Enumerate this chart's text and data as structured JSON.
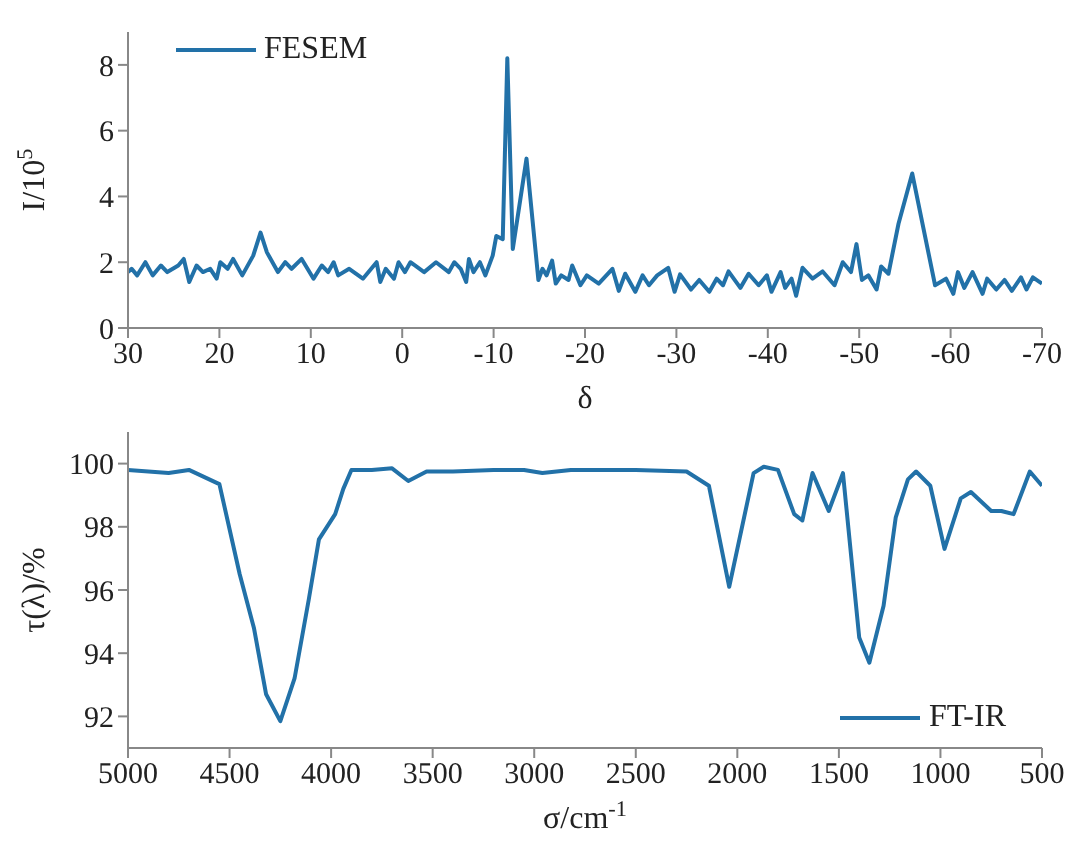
{
  "chart_data": [
    {
      "type": "line",
      "xlabel": "δ",
      "ylabel": "I/10$^{5}$",
      "xlim": [
        30,
        -70
      ],
      "xticks": [
        30,
        20,
        10,
        0,
        -10,
        -20,
        -30,
        -40,
        -50,
        -60,
        -70
      ],
      "ylim": [
        0,
        9
      ],
      "yticks": [
        0,
        2,
        4,
        6,
        8
      ],
      "legend": "top left",
      "grid": false,
      "marker": "none",
      "series": [
        {
          "name": "FESEM",
          "color": "#2271a8",
          "x": [
            30.0,
            29.6,
            29.0,
            28.1,
            27.3,
            26.4,
            25.7,
            24.5,
            23.9,
            23.3,
            22.5,
            21.8,
            21.0,
            20.3,
            19.9,
            19.1,
            18.5,
            17.5,
            16.3,
            15.5,
            14.8,
            13.6,
            12.8,
            12.1,
            11.0,
            9.7,
            8.8,
            8.1,
            7.5,
            7.0,
            5.8,
            4.3,
            2.8,
            2.4,
            1.8,
            0.9,
            0.4,
            -0.3,
            -0.9,
            -2.4,
            -3.7,
            -5.1,
            -5.7,
            -6.4,
            -7.0,
            -7.3,
            -7.8,
            -8.5,
            -9.1,
            -9.9,
            -10.3,
            -11.0,
            -11.5,
            -12.1,
            -13.6,
            -14.9,
            -15.35,
            -15.8,
            -16.4,
            -16.8,
            -17.4,
            -18.2,
            -18.6,
            -19.5,
            -20.2,
            -21.5,
            -23.0,
            -23.7,
            -24.4,
            -25.5,
            -26.3,
            -27.0,
            -27.9,
            -29.1,
            -29.8,
            -30.4,
            -31.6,
            -32.5,
            -33.6,
            -34.4,
            -35.1,
            -35.7,
            -37.0,
            -37.9,
            -39.0,
            -39.9,
            -40.4,
            -41.4,
            -41.9,
            -42.6,
            -43.1,
            -43.8,
            -44.9,
            -46.0,
            -47.3,
            -48.2,
            -49.1,
            -49.7,
            -50.3,
            -51.0,
            -51.9,
            -52.4,
            -53.2,
            -54.3,
            -55.8,
            -58.3,
            -59.5,
            -60.3,
            -60.8,
            -61.5,
            -62.4,
            -63.5,
            -64.0,
            -65.0,
            -65.9,
            -66.7,
            -67.7,
            -68.3,
            -69.0,
            -70.0
          ],
          "values": [
            1.7,
            1.8,
            1.6,
            2.0,
            1.6,
            1.9,
            1.7,
            1.9,
            2.1,
            1.4,
            1.9,
            1.7,
            1.8,
            1.5,
            2.0,
            1.8,
            2.1,
            1.6,
            2.2,
            2.9,
            2.3,
            1.7,
            2.0,
            1.8,
            2.1,
            1.5,
            1.9,
            1.7,
            2.0,
            1.6,
            1.8,
            1.5,
            2.0,
            1.4,
            1.8,
            1.5,
            2.0,
            1.7,
            2.0,
            1.7,
            2.0,
            1.7,
            2.0,
            1.8,
            1.4,
            2.1,
            1.7,
            2.0,
            1.6,
            2.2,
            2.8,
            2.7,
            8.2,
            2.4,
            5.15,
            1.46,
            1.8,
            1.6,
            2.05,
            1.35,
            1.6,
            1.46,
            1.9,
            1.3,
            1.6,
            1.35,
            1.8,
            1.13,
            1.65,
            1.1,
            1.6,
            1.3,
            1.6,
            1.83,
            1.1,
            1.63,
            1.17,
            1.46,
            1.1,
            1.5,
            1.3,
            1.72,
            1.22,
            1.65,
            1.3,
            1.6,
            1.1,
            1.7,
            1.22,
            1.5,
            0.98,
            1.83,
            1.5,
            1.72,
            1.3,
            2.0,
            1.7,
            2.55,
            1.46,
            1.6,
            1.17,
            1.87,
            1.65,
            3.17,
            4.7,
            1.3,
            1.5,
            1.04,
            1.7,
            1.22,
            1.7,
            1.04,
            1.5,
            1.17,
            1.46,
            1.13,
            1.54,
            1.17,
            1.54,
            1.35
          ]
        }
      ]
    },
    {
      "type": "line",
      "xlabel": "σ/cm$^{-1}$",
      "ylabel": "τ(λ)/%",
      "xlim": [
        5000,
        500
      ],
      "xticks": [
        5000,
        4500,
        4000,
        3500,
        3000,
        2500,
        2000,
        1500,
        1000,
        500
      ],
      "ylim": [
        91,
        101
      ],
      "yticks": [
        92,
        94,
        96,
        98,
        100
      ],
      "legend": "bottom right",
      "grid": false,
      "marker": "none",
      "series": [
        {
          "name": "FT-IR",
          "color": "#2271a8",
          "x": [
            5000,
            4800,
            4700,
            4550,
            4450,
            4380,
            4320,
            4250,
            4180,
            4110,
            4060,
            3980,
            3940,
            3900,
            3800,
            3700,
            3620,
            3530,
            3400,
            3200,
            3050,
            2960,
            2820,
            2500,
            2250,
            2140,
            2040,
            1920,
            1870,
            1800,
            1720,
            1680,
            1630,
            1550,
            1480,
            1400,
            1350,
            1280,
            1220,
            1160,
            1120,
            1050,
            980,
            900,
            850,
            750,
            700,
            640,
            560,
            500
          ],
          "values": [
            99.8,
            99.7,
            99.8,
            99.35,
            96.5,
            94.8,
            92.7,
            91.85,
            93.2,
            95.7,
            97.6,
            98.4,
            99.2,
            99.8,
            99.8,
            99.85,
            99.45,
            99.75,
            99.75,
            99.8,
            99.8,
            99.7,
            99.8,
            99.8,
            99.75,
            99.3,
            96.1,
            99.7,
            99.9,
            99.8,
            98.4,
            98.2,
            99.7,
            98.5,
            99.7,
            94.5,
            93.7,
            95.5,
            98.3,
            99.5,
            99.75,
            99.3,
            97.3,
            98.9,
            99.1,
            98.5,
            98.5,
            98.4,
            99.75,
            99.3
          ]
        }
      ]
    }
  ]
}
